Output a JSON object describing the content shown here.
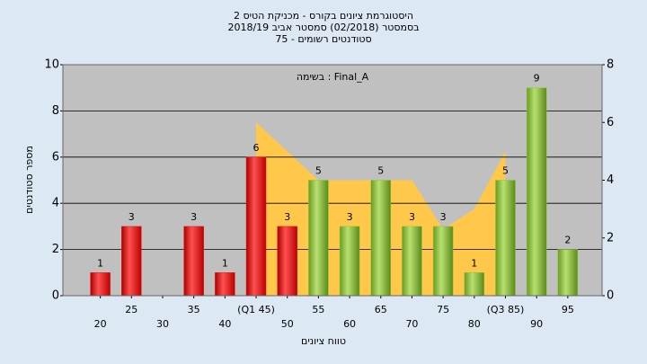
{
  "chart_data": {
    "type": "bar",
    "title": [
      "היסטוגרמת ציונים בקורס - מכניקת הטיס 2",
      "בסמסטר  (02/2018)  סמסטר אביב 2018/19",
      "סטודנטים רשומים - 75"
    ],
    "annotation": "בשימה : Final_A",
    "x_label": "טווח ציונים",
    "y_label": "מספר סטודנטים",
    "x": [
      20,
      25,
      30,
      35,
      40,
      45,
      50,
      55,
      60,
      65,
      70,
      75,
      80,
      85,
      90,
      95
    ],
    "xlim": [
      14,
      100.5
    ],
    "xticks": [
      20,
      25,
      30,
      35,
      40,
      {
        "value": 45,
        "label": "(Q1 45)"
      },
      50,
      55,
      60,
      65,
      70,
      75,
      80,
      {
        "value": 85,
        "label": "(Q3 85)"
      },
      90,
      95
    ],
    "series": [
      {
        "values": [
          1,
          3,
          0,
          3,
          1,
          6,
          3,
          5,
          3,
          5,
          3,
          3,
          1,
          5,
          9,
          2
        ],
        "value_labels": [
          "1",
          "3",
          null,
          "3",
          "1",
          "6",
          "3",
          "5",
          "3",
          "5",
          "3",
          "3",
          "1",
          "5",
          "9",
          "2"
        ],
        "colors": [
          "#e02020",
          "#e02020",
          "#e02020",
          "#e02020",
          "#e02020",
          "#e02020",
          "#e02020",
          "#8cc63f",
          "#8cc63f",
          "#8cc63f",
          "#8cc63f",
          "#8cc63f",
          "#8cc63f",
          "#8cc63f",
          "#8cc63f",
          "#8cc63f"
        ]
      }
    ],
    "area": {
      "x": [
        45,
        55,
        70,
        75,
        80,
        85
      ],
      "values": [
        6,
        4,
        4,
        2.3,
        3,
        5
      ],
      "color": "#ffc84a",
      "axis": "y2"
    },
    "ylim": [
      0,
      10
    ],
    "yticks": [
      0,
      2,
      4,
      6,
      8,
      10
    ],
    "y2lim": [
      0,
      8
    ],
    "y2ticks": [
      0,
      2,
      4,
      6,
      8
    ],
    "grid": true
  }
}
